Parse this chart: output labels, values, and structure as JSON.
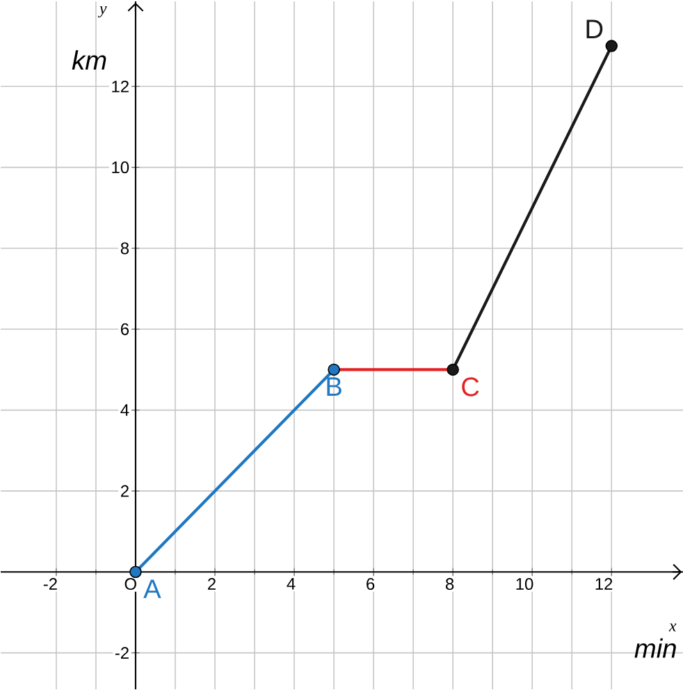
{
  "chart_data": {
    "type": "line",
    "xlabel": "x",
    "ylabel": "y",
    "xlim": [
      -3.4,
      13.8
    ],
    "ylim": [
      -2.9,
      14.1
    ],
    "xticks": [
      -2,
      {
        "value": 0,
        "label": "O"
      },
      2,
      4,
      6,
      8,
      10,
      12
    ],
    "yticks": [
      -2,
      2,
      4,
      6,
      8,
      10,
      12
    ],
    "grid": true,
    "x": [
      0,
      5,
      8,
      12
    ],
    "series": [
      {
        "color": "#1f78c1",
        "values": [
          0,
          5,
          null,
          null
        ],
        "marker": "circle"
      },
      {
        "color": "#e32222",
        "values": [
          null,
          5,
          5,
          null
        ],
        "marker": "none"
      },
      {
        "color": "#1a1a1a",
        "values": [
          null,
          null,
          5,
          13
        ],
        "marker": "circle"
      }
    ],
    "annotations": [
      "km",
      "min",
      {
        "text": "A",
        "x": 0,
        "y": 0
      },
      {
        "text": "B",
        "x": 5,
        "y": 5
      },
      {
        "text": "C",
        "x": 8,
        "y": 5
      },
      {
        "text": "D",
        "x": 12,
        "y": 13
      }
    ]
  }
}
